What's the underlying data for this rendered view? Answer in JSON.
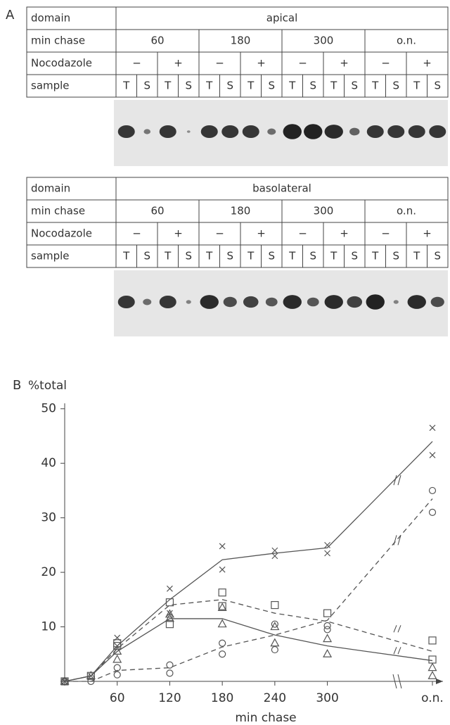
{
  "panel_a": {
    "label": "A",
    "tables": [
      {
        "rows": [
          [
            "domain",
            "apical"
          ],
          [
            "min chase",
            "60",
            "180",
            "300",
            "o.n."
          ],
          [
            "Nocodazole",
            "−",
            "+",
            "−",
            "+",
            "−",
            "+",
            "−",
            "+"
          ],
          [
            "sample",
            "T",
            "S",
            "T",
            "S",
            "T",
            "S",
            "T",
            "S",
            "T",
            "S",
            "T",
            "S",
            "T",
            "S",
            "T",
            "S"
          ]
        ]
      },
      {
        "rows": [
          [
            "domain",
            "basolateral"
          ],
          [
            "min chase",
            "60",
            "180",
            "300",
            "o.n."
          ],
          [
            "Nocodazole",
            "−",
            "+",
            "−",
            "+",
            "−",
            "+",
            "−",
            "+"
          ],
          [
            "sample",
            "T",
            "S",
            "T",
            "S",
            "T",
            "S",
            "T",
            "S",
            "T",
            "S",
            "T",
            "S",
            "T",
            "S",
            "T",
            "S"
          ]
        ]
      }
    ]
  },
  "chart_data": {
    "type": "line",
    "panel_label": "B",
    "ylabel": "%total",
    "xlabel": "min chase",
    "x": [
      0,
      30,
      60,
      120,
      180,
      240,
      300,
      420
    ],
    "xlim": [
      0,
      420
    ],
    "xticks": [
      60,
      120,
      180,
      240,
      300,
      {
        "value": 420,
        "label": "o.n."
      }
    ],
    "ylim": [
      0,
      51
    ],
    "yticks": [
      10,
      20,
      30,
      40,
      50
    ],
    "series": [
      {
        "marker": "x",
        "dashed": false,
        "color": "#555",
        "values": [
          0,
          1,
          6.5,
          15,
          22.3,
          23.5,
          24.5,
          44
        ],
        "replicates": [
          [
            0,
            1,
            8,
            17,
            24.8,
            24,
            25,
            46.5
          ],
          [
            null,
            null,
            6.5,
            12.5,
            20.5,
            23,
            23.5,
            41.5
          ]
        ]
      },
      {
        "marker": "square",
        "dashed": true,
        "color": "#555",
        "values": [
          0,
          1,
          6,
          14,
          15,
          12.5,
          11,
          5.5
        ],
        "replicates": [
          [
            0,
            1,
            7,
            14.5,
            16.3,
            14,
            12.5,
            7.5
          ],
          [
            null,
            null,
            6.5,
            10.5,
            13.8,
            null,
            null,
            4
          ]
        ]
      },
      {
        "marker": "triangle",
        "dashed": false,
        "color": "#555",
        "values": [
          0,
          1,
          5.5,
          11.5,
          11.5,
          8.5,
          6.5,
          3.8
        ],
        "replicates": [
          [
            0,
            1,
            5.5,
            12.3,
            13.5,
            10,
            7.8,
            2.5
          ],
          [
            null,
            null,
            4,
            11.5,
            10.5,
            7,
            5,
            1
          ]
        ]
      },
      {
        "marker": "circle",
        "dashed": true,
        "color": "#555",
        "values": [
          0,
          0,
          2,
          2.5,
          6.3,
          8.5,
          11.2,
          33.5
        ],
        "replicates": [
          [
            0,
            0,
            2.5,
            3,
            7,
            10.5,
            9.5,
            35
          ],
          [
            null,
            null,
            1.2,
            1.5,
            5,
            5.8,
            10.2,
            31
          ]
        ]
      }
    ]
  }
}
